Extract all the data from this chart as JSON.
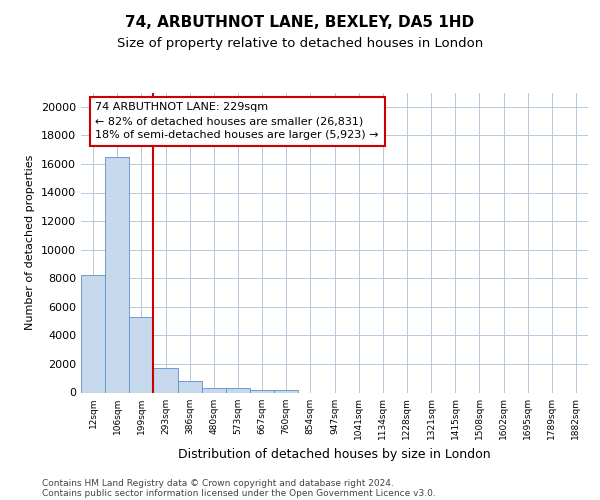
{
  "title": "74, ARBUTHNOT LANE, BEXLEY, DA5 1HD",
  "subtitle": "Size of property relative to detached houses in London",
  "xlabel": "Distribution of detached houses by size in London",
  "ylabel": "Number of detached properties",
  "categories": [
    "12sqm",
    "106sqm",
    "199sqm",
    "293sqm",
    "386sqm",
    "480sqm",
    "573sqm",
    "667sqm",
    "760sqm",
    "854sqm",
    "947sqm",
    "1041sqm",
    "1134sqm",
    "1228sqm",
    "1321sqm",
    "1415sqm",
    "1508sqm",
    "1602sqm",
    "1695sqm",
    "1789sqm",
    "1882sqm"
  ],
  "values": [
    8200,
    16500,
    5300,
    1750,
    800,
    350,
    290,
    200,
    200,
    0,
    0,
    0,
    0,
    0,
    0,
    0,
    0,
    0,
    0,
    0,
    0
  ],
  "bar_color": "#c5d8ec",
  "bar_edge_color": "#5b8fc9",
  "vline_x": 2.5,
  "annotation_text": "74 ARBUTHNOT LANE: 229sqm\n← 82% of detached houses are smaller (26,831)\n18% of semi-detached houses are larger (5,923) →",
  "annotation_box_color": "#ffffff",
  "annotation_box_edge": "#cc0000",
  "vline_color": "#cc0000",
  "ylim": [
    0,
    21000
  ],
  "yticks": [
    0,
    2000,
    4000,
    6000,
    8000,
    10000,
    12000,
    14000,
    16000,
    18000,
    20000
  ],
  "background_color": "#ffffff",
  "grid_color": "#b8c8dc",
  "footer_line1": "Contains HM Land Registry data © Crown copyright and database right 2024.",
  "footer_line2": "Contains public sector information licensed under the Open Government Licence v3.0.",
  "title_fontsize": 11,
  "subtitle_fontsize": 9.5,
  "ylabel_fontsize": 8,
  "xlabel_fontsize": 9
}
